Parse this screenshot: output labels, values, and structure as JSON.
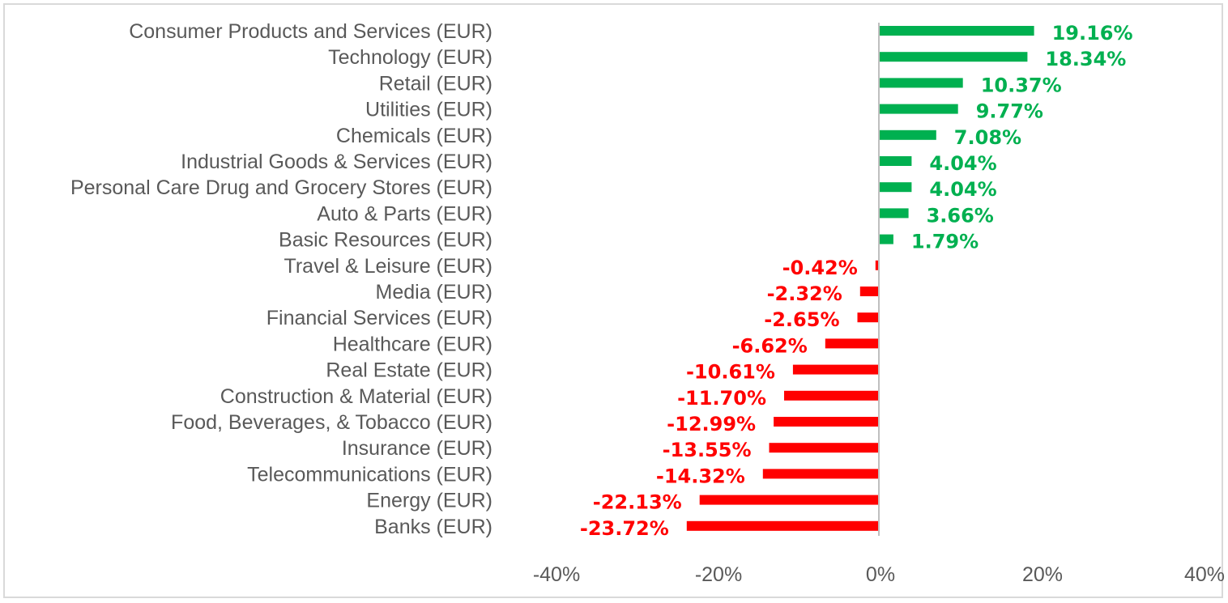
{
  "chart_data": {
    "type": "bar",
    "orientation": "horizontal",
    "title": "",
    "xlabel": "",
    "ylabel": "",
    "categories": [
      "Consumer Products and Services (EUR)",
      "Technology (EUR)",
      "Retail (EUR)",
      "Utilities (EUR)",
      "Chemicals (EUR)",
      "Industrial Goods & Services (EUR)",
      "Personal Care Drug and Grocery Stores (EUR)",
      "Auto & Parts (EUR)",
      "Basic Resources (EUR)",
      "Travel & Leisure (EUR)",
      "Media (EUR)",
      "Financial Services (EUR)",
      "Healthcare (EUR)",
      "Real Estate (EUR)",
      "Construction & Material (EUR)",
      "Food, Beverages, & Tobacco (EUR)",
      "Insurance (EUR)",
      "Telecommunications (EUR)",
      "Energy (EUR)",
      "Banks  (EUR)"
    ],
    "values": [
      19.16,
      18.34,
      10.37,
      9.77,
      7.08,
      4.04,
      4.04,
      3.66,
      1.79,
      -0.42,
      -2.32,
      -2.65,
      -6.62,
      -10.61,
      -11.7,
      -12.99,
      -13.55,
      -14.32,
      -22.13,
      -23.72
    ],
    "data_labels": [
      "19.16%",
      "18.34%",
      "10.37%",
      "9.77%",
      "7.08%",
      "4.04%",
      "4.04%",
      "3.66%",
      "1.79%",
      "-0.42%",
      "-2.32%",
      "-2.65%",
      "-6.62%",
      "-10.61%",
      "-11.70%",
      "-12.99%",
      "-13.55%",
      "-14.32%",
      "-22.13%",
      "-23.72%"
    ],
    "xlim": [
      -40,
      40
    ],
    "x_ticks": [
      -40,
      -20,
      0,
      20,
      40
    ],
    "x_tick_labels": [
      "-40%",
      "-20%",
      "0%",
      "20%",
      "40%"
    ],
    "grid": false,
    "legend": "none",
    "colors": {
      "positive": "#00b050",
      "negative": "#ff0000",
      "axis": "#bfbfbf",
      "text": "#595959"
    }
  }
}
